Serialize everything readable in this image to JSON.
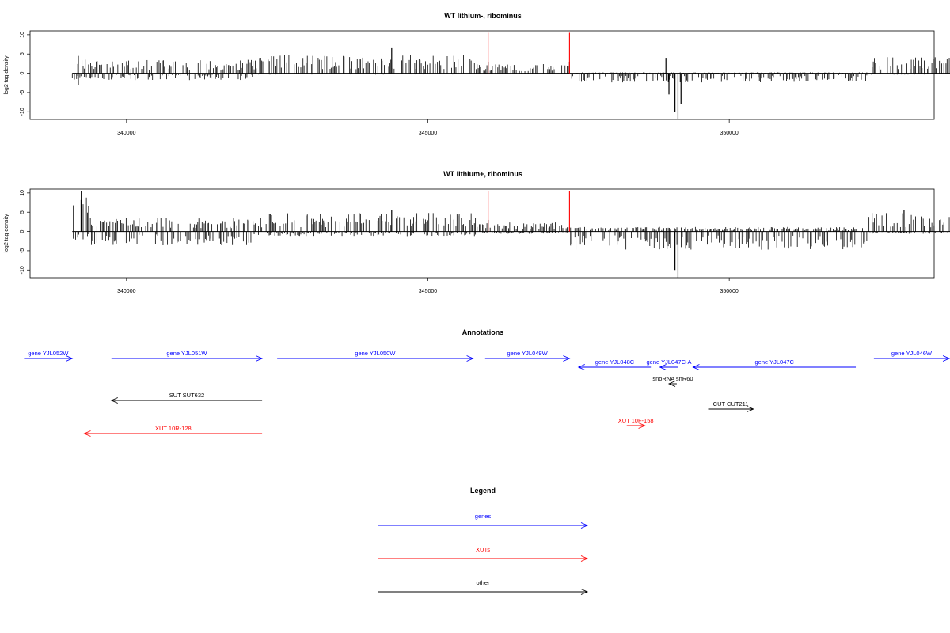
{
  "chart_data": [
    {
      "type": "bar",
      "title": "WT lithium-, ribominus",
      "ylabel": "log2 tag density",
      "xlim": [
        338400,
        353400
      ],
      "ylim": [
        -12,
        11
      ],
      "xticks": [
        340000,
        345000,
        350000
      ],
      "yticks": [
        10,
        5,
        0,
        -5,
        -10
      ],
      "x_range": [
        339100,
        354100
      ],
      "markers": [
        346000,
        347350
      ],
      "profile": [
        {
          "from": 339100,
          "to": 342100,
          "plus": 3.0,
          "minus": 1.5
        },
        {
          "from": 342100,
          "to": 345800,
          "plus": 4.0,
          "minus": 0.3
        },
        {
          "from": 345800,
          "to": 347350,
          "plus": 2.0,
          "minus": 0.2
        },
        {
          "from": 347350,
          "to": 352300,
          "plus": 0.2,
          "minus": 2.0
        },
        {
          "from": 352300,
          "to": 354100,
          "plus": 3.5,
          "minus": 0.3
        }
      ],
      "peaks": [
        {
          "x": 339200,
          "y": 4.5
        },
        {
          "x": 339200,
          "y": -3
        },
        {
          "x": 344400,
          "y": 6.5
        },
        {
          "x": 346000,
          "y": 3
        },
        {
          "x": 347350,
          "y": 3
        },
        {
          "x": 348950,
          "y": 4
        },
        {
          "x": 349100,
          "y": -10
        },
        {
          "x": 349150,
          "y": -12
        },
        {
          "x": 349200,
          "y": -8
        },
        {
          "x": 349000,
          "y": -5.5
        }
      ]
    },
    {
      "type": "bar",
      "title": "WT lithium+, ribominus",
      "ylabel": "log2 tag density",
      "xlim": [
        338400,
        353400
      ],
      "ylim": [
        -12,
        11
      ],
      "xticks": [
        340000,
        345000,
        350000
      ],
      "yticks": [
        10,
        5,
        0,
        -5,
        -10
      ],
      "x_range": [
        339100,
        354100
      ],
      "markers": [
        346000,
        347350
      ],
      "profile": [
        {
          "from": 339100,
          "to": 339400,
          "plus": 8.0,
          "minus": 2.0
        },
        {
          "from": 339400,
          "to": 342100,
          "plus": 3.0,
          "minus": 3.0
        },
        {
          "from": 342100,
          "to": 345800,
          "plus": 4.0,
          "minus": 1.0
        },
        {
          "from": 345800,
          "to": 347350,
          "plus": 2.0,
          "minus": 0.5
        },
        {
          "from": 347350,
          "to": 352300,
          "plus": 1.0,
          "minus": 4.0
        },
        {
          "from": 352300,
          "to": 354100,
          "plus": 4.0,
          "minus": 0.5
        }
      ],
      "peaks": [
        {
          "x": 339250,
          "y": 10.5
        },
        {
          "x": 344400,
          "y": 5.5
        },
        {
          "x": 346000,
          "y": 3
        },
        {
          "x": 349100,
          "y": -10
        },
        {
          "x": 349150,
          "y": -12
        },
        {
          "x": 352900,
          "y": 5.5
        }
      ]
    }
  ],
  "annotations": {
    "title": "Annotations",
    "features": [
      {
        "label": "gene YJL052W",
        "class": "genes",
        "start": 338300,
        "end": 339100,
        "strand": "+",
        "row": 0
      },
      {
        "label": "gene YJL051W",
        "class": "genes",
        "start": 339750,
        "end": 342250,
        "strand": "+",
        "row": 0
      },
      {
        "label": "gene YJL050W",
        "class": "genes",
        "start": 342500,
        "end": 345750,
        "strand": "+",
        "row": 0
      },
      {
        "label": "gene YJL049W",
        "class": "genes",
        "start": 345950,
        "end": 347350,
        "strand": "+",
        "row": 0
      },
      {
        "label": "gene YJL048C",
        "class": "genes",
        "start": 347500,
        "end": 348700,
        "strand": "-",
        "row": 1
      },
      {
        "label": "gene YJL047C-A",
        "class": "genes",
        "start": 348850,
        "end": 349150,
        "strand": "-",
        "row": 1
      },
      {
        "label": "gene YJL047C",
        "class": "genes",
        "start": 349400,
        "end": 352100,
        "strand": "-",
        "row": 1
      },
      {
        "label": "gene YJL046W",
        "class": "genes",
        "start": 352400,
        "end": 353650,
        "strand": "+",
        "row": 0
      },
      {
        "label": "snoRNA snR60",
        "class": "other",
        "start": 349000,
        "end": 349130,
        "strand": "-",
        "row": 2
      },
      {
        "label": "SUT SUT632",
        "class": "other",
        "start": 339750,
        "end": 342250,
        "strand": "-",
        "row": 3
      },
      {
        "label": "CUT CUT211",
        "class": "other",
        "start": 349650,
        "end": 350400,
        "strand": "+",
        "row": 4
      },
      {
        "label": "XUT 10F-158",
        "class": "XUTs",
        "start": 348300,
        "end": 348600,
        "strand": "+",
        "row": 5
      },
      {
        "label": "XUT 10R-128",
        "class": "XUTs",
        "start": 339300,
        "end": 342250,
        "strand": "-",
        "row": 6
      }
    ]
  },
  "legend": {
    "title": "Legend",
    "items": [
      {
        "label": "genes",
        "class": "genes"
      },
      {
        "label": "XUTs",
        "class": "XUTs"
      },
      {
        "label": "other",
        "class": "other"
      }
    ]
  },
  "colors": {
    "genes": "#0000ff",
    "XUTs": "#ff0000",
    "other": "#000000",
    "marker": "#ff0000",
    "bars": "#000000"
  }
}
